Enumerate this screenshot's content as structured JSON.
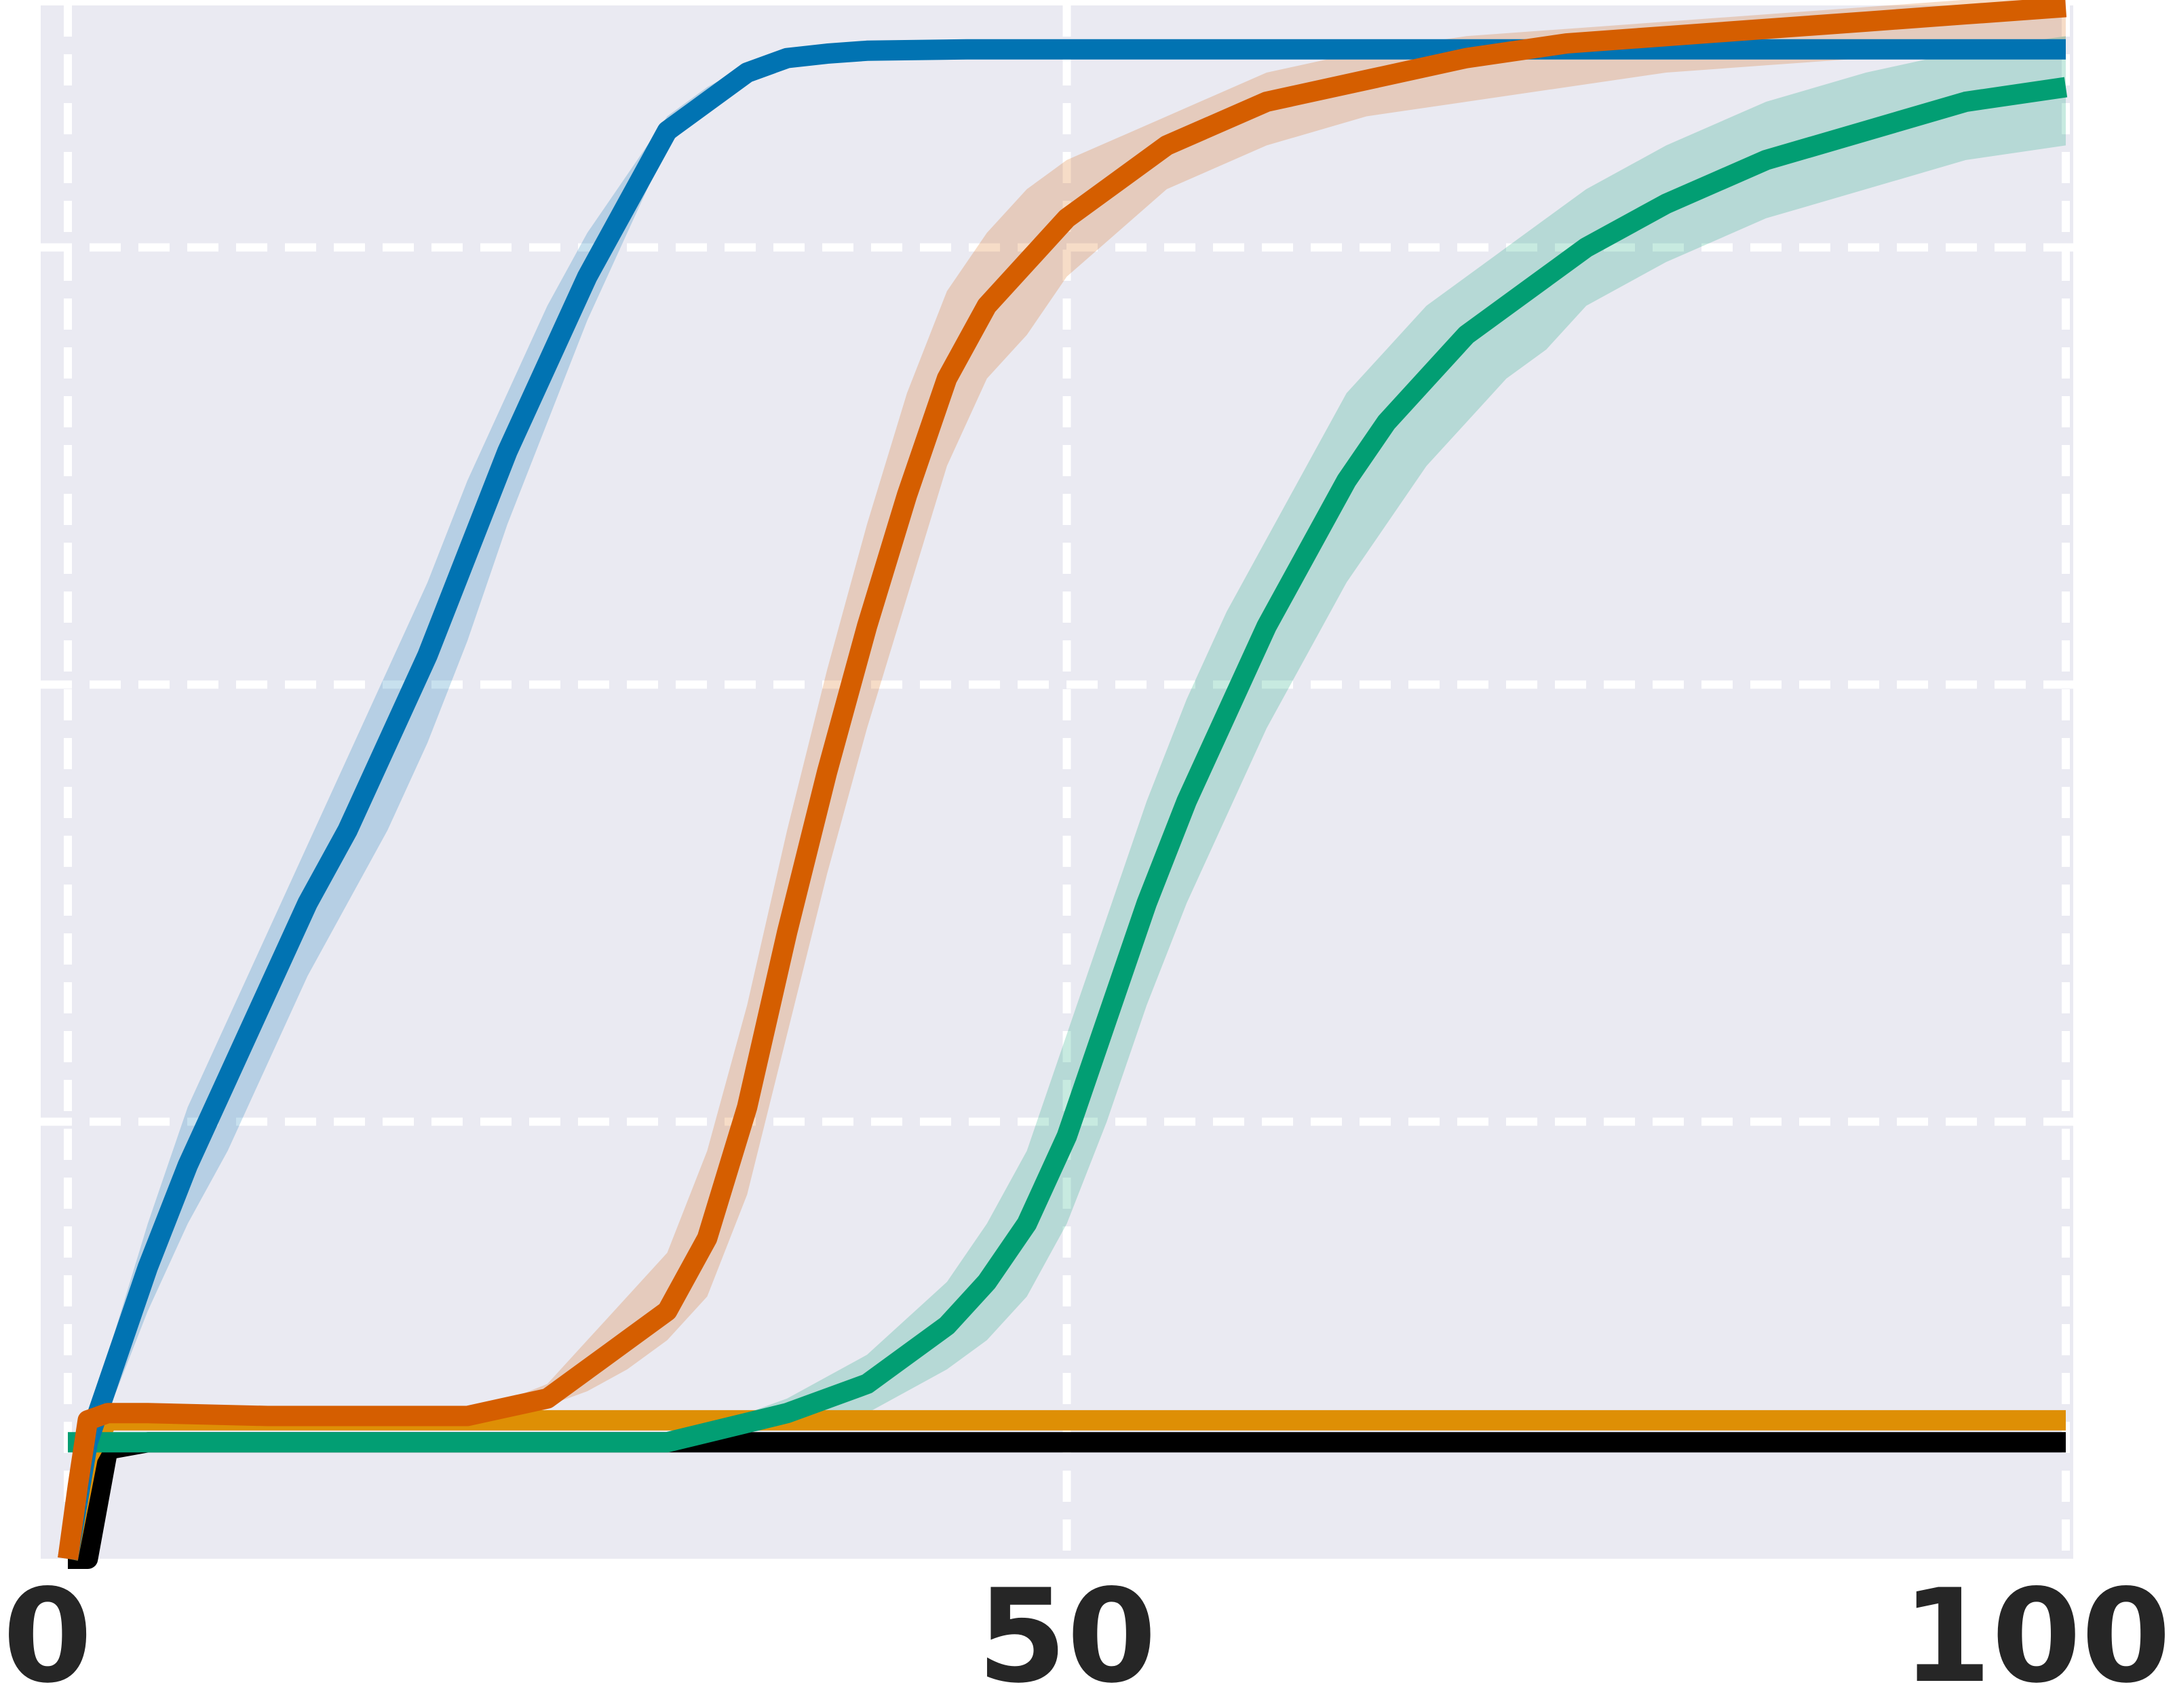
{
  "chart_data": {
    "type": "line",
    "title": "",
    "xlabel": "",
    "ylabel": "",
    "xlim": [
      0,
      100
    ],
    "ylim": [
      0,
      1.04
    ],
    "xticks": [
      0,
      50,
      100
    ],
    "xtick_labels": [
      "0",
      "50",
      "100"
    ],
    "ygrid": [
      0.3,
      0.6,
      0.9
    ],
    "grid": true,
    "background": "#eaeaf2",
    "series": [
      {
        "color": "#0173b2",
        "band_color": "#0173b2",
        "x": [
          0,
          1,
          2,
          4,
          6,
          8,
          10,
          12,
          14,
          16,
          18,
          20,
          22,
          24,
          26,
          28,
          30,
          32,
          34,
          36,
          38,
          40,
          45,
          50,
          60,
          70,
          80,
          90,
          100
        ],
        "y": [
          0.0,
          0.08,
          0.12,
          0.2,
          0.27,
          0.33,
          0.39,
          0.45,
          0.5,
          0.56,
          0.62,
          0.69,
          0.76,
          0.82,
          0.88,
          0.93,
          0.98,
          1.0,
          1.02,
          1.03,
          1.033,
          1.035,
          1.036,
          1.036,
          1.036,
          1.036,
          1.036,
          1.036,
          1.036
        ],
        "y_lower": [
          0.0,
          0.07,
          0.1,
          0.17,
          0.23,
          0.28,
          0.34,
          0.4,
          0.45,
          0.5,
          0.56,
          0.63,
          0.71,
          0.78,
          0.85,
          0.91,
          0.97,
          0.995,
          1.015,
          1.025,
          1.03,
          1.033,
          1.035,
          1.036,
          1.036,
          1.036,
          1.036,
          1.036,
          1.036
        ],
        "y_upper": [
          0.0,
          0.09,
          0.14,
          0.23,
          0.31,
          0.37,
          0.43,
          0.49,
          0.55,
          0.61,
          0.67,
          0.74,
          0.8,
          0.86,
          0.91,
          0.95,
          0.99,
          1.01,
          1.025,
          1.033,
          1.035,
          1.036,
          1.036,
          1.036,
          1.036,
          1.036,
          1.036,
          1.036,
          1.036
        ]
      },
      {
        "color": "#d55e00",
        "band_color": "#d55e00",
        "x": [
          0,
          0.5,
          1,
          2,
          4,
          10,
          15,
          20,
          24,
          26,
          28,
          30,
          32,
          34,
          36,
          38,
          40,
          42,
          44,
          46,
          48,
          50,
          55,
          60,
          65,
          70,
          75,
          80,
          85,
          90,
          95,
          100
        ],
        "y": [
          0.0,
          0.05,
          0.095,
          0.1,
          0.1,
          0.098,
          0.098,
          0.098,
          0.11,
          0.13,
          0.15,
          0.17,
          0.22,
          0.31,
          0.43,
          0.54,
          0.64,
          0.73,
          0.81,
          0.86,
          0.89,
          0.92,
          0.97,
          1.0,
          1.015,
          1.03,
          1.04,
          1.045,
          1.05,
          1.055,
          1.06,
          1.065
        ],
        "y_lower": [
          0.0,
          0.05,
          0.095,
          0.1,
          0.1,
          0.098,
          0.098,
          0.098,
          0.105,
          0.115,
          0.13,
          0.15,
          0.18,
          0.25,
          0.36,
          0.47,
          0.57,
          0.66,
          0.75,
          0.81,
          0.84,
          0.88,
          0.94,
          0.97,
          0.99,
          1.0,
          1.01,
          1.02,
          1.025,
          1.03,
          1.035,
          1.04
        ],
        "y_upper": [
          0.0,
          0.05,
          0.095,
          0.1,
          0.1,
          0.098,
          0.098,
          0.098,
          0.12,
          0.15,
          0.18,
          0.21,
          0.28,
          0.38,
          0.5,
          0.61,
          0.71,
          0.8,
          0.87,
          0.91,
          0.94,
          0.96,
          0.99,
          1.02,
          1.035,
          1.045,
          1.05,
          1.055,
          1.06,
          1.065,
          1.07,
          1.075
        ]
      },
      {
        "color": "#029e73",
        "band_color": "#029e73",
        "x": [
          0,
          1,
          2,
          5,
          15,
          30,
          36,
          40,
          44,
          46,
          48,
          50,
          52,
          54,
          56,
          58,
          60,
          62,
          64,
          66,
          68,
          70,
          72,
          74,
          76,
          80,
          85,
          90,
          95,
          100
        ],
        "y": [
          0.08,
          0.08,
          0.08,
          0.08,
          0.08,
          0.08,
          0.1,
          0.12,
          0.16,
          0.19,
          0.23,
          0.29,
          0.37,
          0.45,
          0.52,
          0.58,
          0.64,
          0.69,
          0.74,
          0.78,
          0.81,
          0.84,
          0.86,
          0.88,
          0.9,
          0.93,
          0.96,
          0.98,
          1.0,
          1.01
        ],
        "y_lower": [
          0.08,
          0.08,
          0.08,
          0.08,
          0.08,
          0.08,
          0.09,
          0.1,
          0.13,
          0.15,
          0.18,
          0.23,
          0.3,
          0.38,
          0.45,
          0.51,
          0.57,
          0.62,
          0.67,
          0.71,
          0.75,
          0.78,
          0.81,
          0.83,
          0.86,
          0.89,
          0.92,
          0.94,
          0.96,
          0.97
        ],
        "y_upper": [
          0.08,
          0.08,
          0.08,
          0.08,
          0.08,
          0.08,
          0.11,
          0.14,
          0.19,
          0.23,
          0.28,
          0.36,
          0.44,
          0.52,
          0.59,
          0.65,
          0.7,
          0.75,
          0.8,
          0.83,
          0.86,
          0.88,
          0.9,
          0.92,
          0.94,
          0.97,
          1.0,
          1.02,
          1.035,
          1.045
        ]
      },
      {
        "color": "#de8f05",
        "x": [
          0,
          1,
          2,
          5,
          100
        ],
        "y": [
          0.0,
          0.07,
          0.095,
          0.095,
          0.095
        ]
      },
      {
        "color": "#000000",
        "x": [
          0,
          1,
          2,
          4,
          100
        ],
        "y": [
          0.0,
          0.0,
          0.075,
          0.08,
          0.08
        ]
      }
    ]
  }
}
